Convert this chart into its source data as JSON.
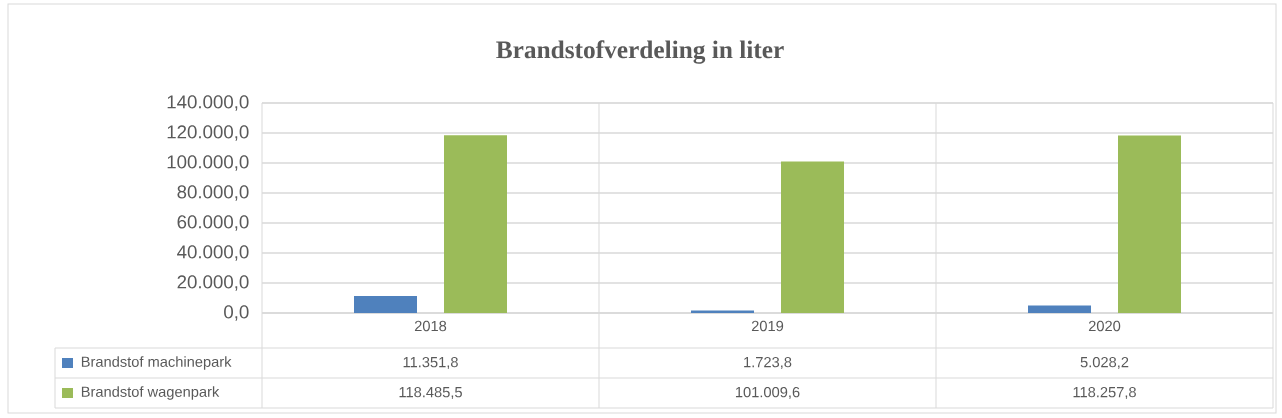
{
  "chart_data": {
    "type": "bar",
    "title": "Brandstofverdeling in liter",
    "categories": [
      "2018",
      "2019",
      "2020"
    ],
    "series": [
      {
        "name": "Brandstof machinepark",
        "color": "#4f81bd",
        "values": [
          11351.8,
          1723.8,
          5028.2
        ],
        "value_labels": [
          "11.351,8",
          "1.723,8",
          "5.028,2"
        ]
      },
      {
        "name": "Brandstof wagenpark",
        "color": "#9bbb59",
        "values": [
          118485.5,
          101009.6,
          118257.8
        ],
        "value_labels": [
          "118.485,5",
          "101.009,6",
          "118.257,8"
        ]
      }
    ],
    "ylim": [
      0,
      140000
    ],
    "yticks": [
      {
        "value": 0,
        "label": "0,0"
      },
      {
        "value": 20000,
        "label": "20.000,0"
      },
      {
        "value": 40000,
        "label": "40.000,0"
      },
      {
        "value": 60000,
        "label": "60.000,0"
      },
      {
        "value": 80000,
        "label": "80.000,0"
      },
      {
        "value": 100000,
        "label": "100.000,0"
      },
      {
        "value": 120000,
        "label": "120.000,0"
      },
      {
        "value": 140000,
        "label": "140.000,0"
      }
    ],
    "grid": "y",
    "legend": "bottom"
  }
}
